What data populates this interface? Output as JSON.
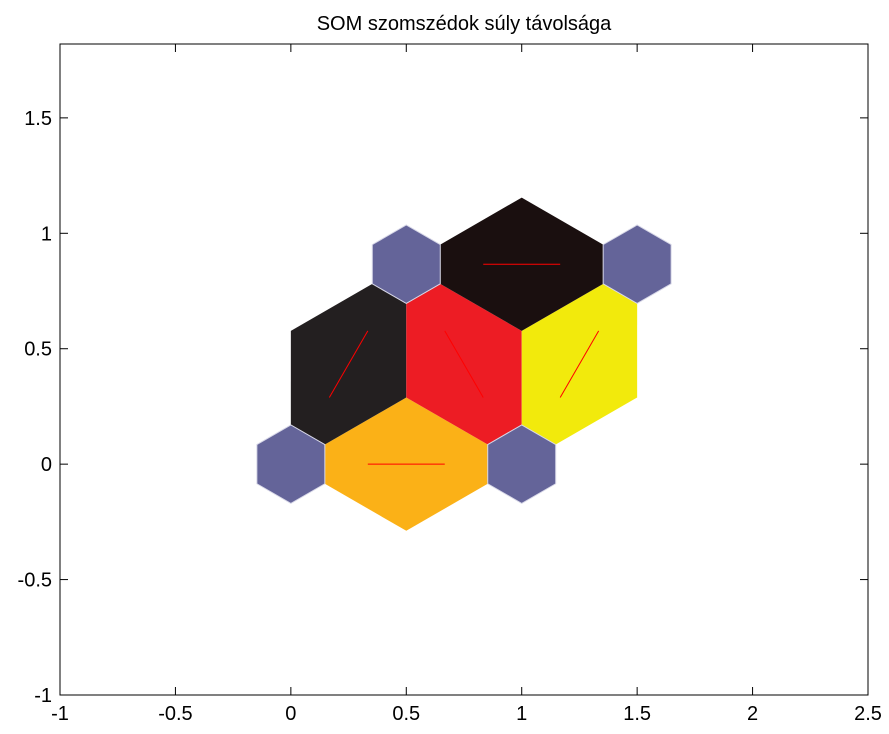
{
  "chart_data": {
    "type": "som_neighbor_distances",
    "title": "SOM szomszédok súly távolsága",
    "neurons": {
      "x": [
        0,
        1,
        0.5,
        1.5
      ],
      "y": [
        0,
        0,
        0.866,
        0.866
      ],
      "color": "#646499"
    },
    "connections": [
      {
        "from": 0,
        "to": 1,
        "color": "#fbb117"
      },
      {
        "from": 0,
        "to": 2,
        "color": "#231f20"
      },
      {
        "from": 1,
        "to": 2,
        "color": "#ed1c24"
      },
      {
        "from": 1,
        "to": 3,
        "color": "#f2ea0c"
      },
      {
        "from": 2,
        "to": 3,
        "color": "#1a0f0f"
      }
    ],
    "line_color": "#ff0000",
    "xlim": [
      -1,
      2.5
    ],
    "xticks": [
      -1,
      -0.5,
      0,
      0.5,
      1,
      1.5,
      2,
      2.5
    ],
    "ylim": [
      -1,
      1.82
    ],
    "yticks": [
      -1,
      -0.5,
      0,
      0.5,
      1,
      1.5
    ]
  }
}
